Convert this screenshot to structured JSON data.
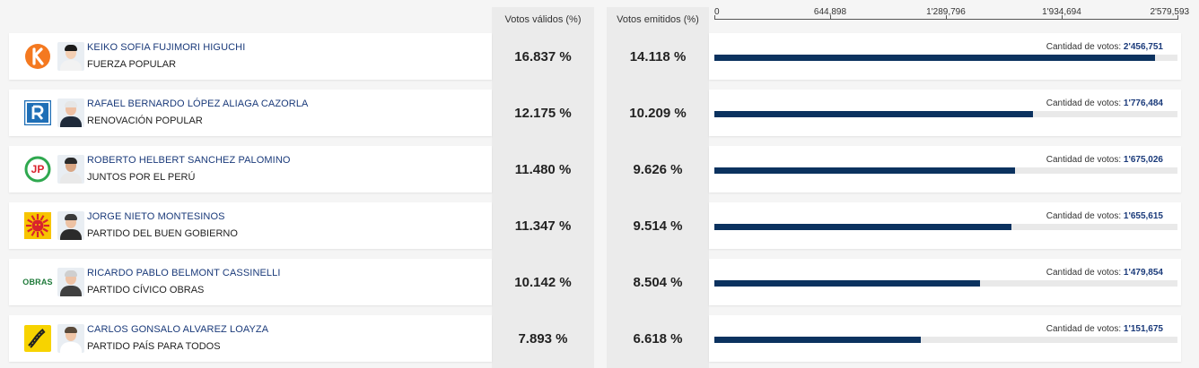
{
  "headers": {
    "valid_votes": "Votos válidos (%)",
    "emitted_votes": "Votos emitidos (%)"
  },
  "axis": {
    "ticks": [
      "0",
      "644,898",
      "1'289,796",
      "1'934,694",
      "2'579,593"
    ],
    "tick_values": [
      0,
      644898,
      1289796,
      1934694,
      2579593
    ],
    "max": 2579593
  },
  "votes_label": "Cantidad de votos:",
  "colors": {
    "bar": "#0b325f",
    "name": "#1a3a7a"
  },
  "candidates": [
    {
      "name": "KEIKO SOFIA FUJIMORI HIGUCHI",
      "party": "FUERZA POPULAR",
      "valid_pct": "16.837 %",
      "emitted_pct": "14.118 %",
      "votes_text": "2'456,751",
      "votes": 2456751,
      "logo_icon": "fuerza-popular-k-logo"
    },
    {
      "name": "RAFAEL BERNARDO LÓPEZ ALIAGA CAZORLA",
      "party": "RENOVACIÓN POPULAR",
      "valid_pct": "12.175 %",
      "emitted_pct": "10.209 %",
      "votes_text": "1'776,484",
      "votes": 1776484,
      "logo_icon": "renovacion-popular-r-logo"
    },
    {
      "name": "ROBERTO HELBERT SANCHEZ PALOMINO",
      "party": "JUNTOS POR EL PERÚ",
      "valid_pct": "11.480 %",
      "emitted_pct": "9.626 %",
      "votes_text": "1'675,026",
      "votes": 1675026,
      "logo_icon": "juntos-por-el-peru-jp-logo"
    },
    {
      "name": "JORGE NIETO MONTESINOS",
      "party": "PARTIDO DEL BUEN GOBIERNO",
      "valid_pct": "11.347 %",
      "emitted_pct": "9.514 %",
      "votes_text": "1'655,615",
      "votes": 1655615,
      "logo_icon": "sun-logo"
    },
    {
      "name": "RICARDO PABLO BELMONT CASSINELLI",
      "party": "PARTIDO CÍVICO OBRAS",
      "valid_pct": "10.142 %",
      "emitted_pct": "8.504 %",
      "votes_text": "1'479,854",
      "votes": 1479854,
      "logo_icon": "obras-logo",
      "logo_text": "OBRAS"
    },
    {
      "name": "CARLOS GONSALO ALVAREZ LOAYZA",
      "party": "PARTIDO PAÍS PARA TODOS",
      "valid_pct": "7.893 %",
      "emitted_pct": "6.618 %",
      "votes_text": "1'151,675",
      "votes": 1151675,
      "logo_icon": "pais-para-todos-road-logo"
    }
  ]
}
